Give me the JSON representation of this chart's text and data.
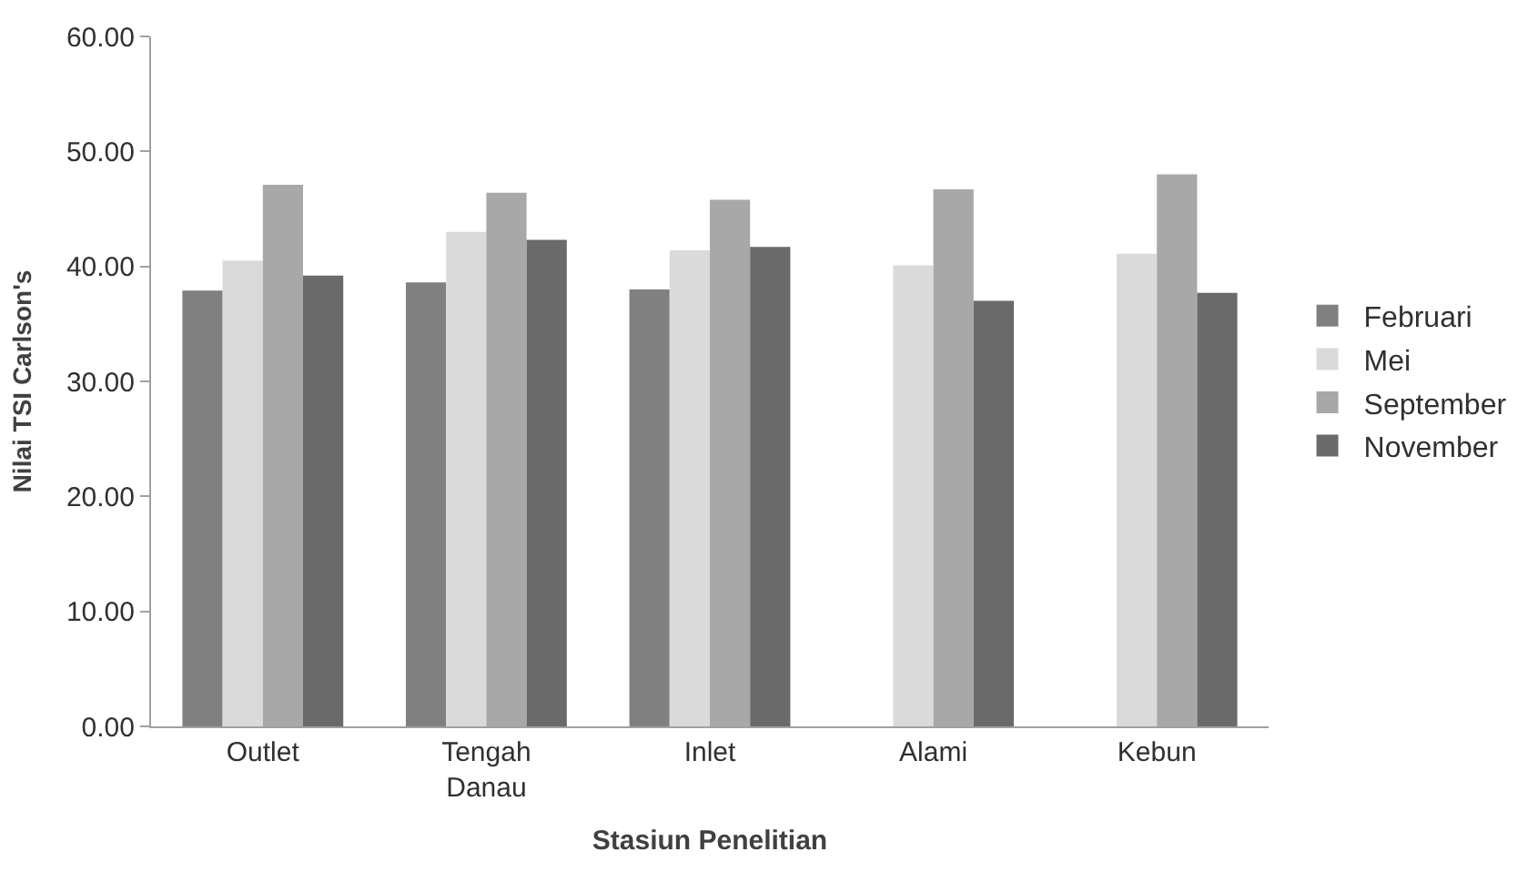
{
  "chart_data": {
    "type": "bar",
    "xlabel": "Stasiun Penelitian",
    "ylabel": "Nilai TSI Carlson's",
    "categories": [
      "Outlet",
      "Tengah Danau",
      "Inlet",
      "Alami",
      "Kebun"
    ],
    "series": [
      {
        "name": "Februari",
        "color": "#808080",
        "values": [
          37.9,
          38.6,
          38.0,
          null,
          null
        ]
      },
      {
        "name": "Mei",
        "color": "#dadada",
        "values": [
          40.5,
          43.0,
          41.4,
          40.1,
          41.1
        ]
      },
      {
        "name": "September",
        "color": "#a8a8a8",
        "values": [
          47.1,
          46.4,
          45.8,
          46.7,
          48.0
        ]
      },
      {
        "name": "November",
        "color": "#6a6a6a",
        "values": [
          39.2,
          42.3,
          41.7,
          37.0,
          37.7
        ]
      }
    ],
    "ylim": [
      0,
      60
    ],
    "yticks": [
      {
        "value": 0,
        "label": "0.00"
      },
      {
        "value": 10,
        "label": "10.00"
      },
      {
        "value": 20,
        "label": "20.00"
      },
      {
        "value": 30,
        "label": "30.00"
      },
      {
        "value": 40,
        "label": "40.00"
      },
      {
        "value": 50,
        "label": "50.00"
      },
      {
        "value": 60,
        "label": "60.00"
      }
    ],
    "legend": "right"
  }
}
